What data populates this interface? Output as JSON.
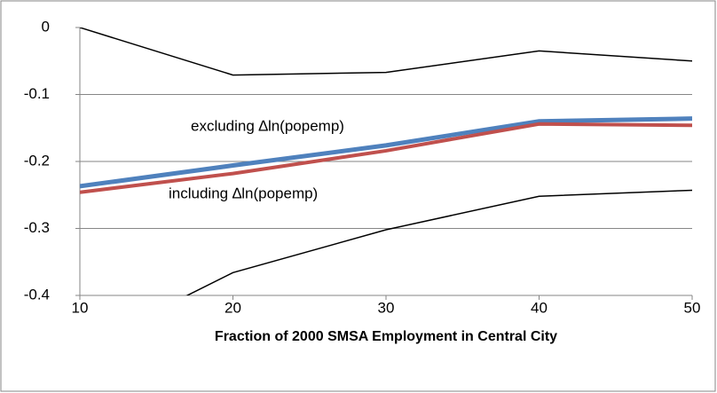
{
  "chart_data": {
    "type": "line",
    "x_label": "Fraction of 2000 SMSA Employment in Central City",
    "x": [
      10,
      20,
      30,
      40,
      50
    ],
    "xlim": [
      10,
      50
    ],
    "xticks": [
      10,
      20,
      30,
      40,
      50
    ],
    "ylim": [
      -0.4,
      0
    ],
    "yticks": [
      0,
      -0.1,
      -0.2,
      -0.3,
      -0.4
    ],
    "grid": true,
    "series": [
      {
        "color": "#000000",
        "values": [
          0,
          -0.071,
          -0.067,
          -0.035,
          -0.05
        ]
      },
      {
        "color": "#4f81bd",
        "values": [
          -0.237,
          -0.206,
          -0.176,
          -0.14,
          -0.136
        ]
      },
      {
        "color": "#c0504d",
        "values": [
          -0.246,
          -0.218,
          -0.184,
          -0.144,
          -0.146
        ]
      },
      {
        "color": "#000000",
        "values": [
          -0.48,
          -0.366,
          -0.302,
          -0.252,
          -0.243
        ]
      }
    ],
    "annotations": [
      "excluding ∆ln(popemp)",
      "including ∆ln(popemp)"
    ]
  }
}
